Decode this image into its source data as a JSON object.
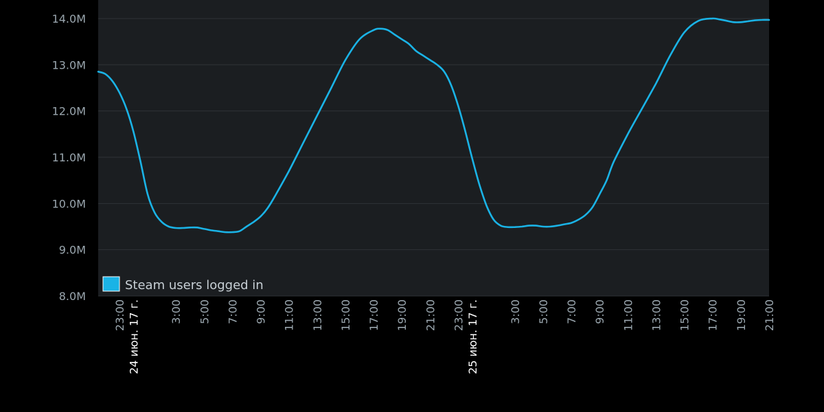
{
  "chart_data": {
    "type": "line",
    "title": "",
    "xlabel": "",
    "ylabel": "",
    "ylim": [
      8.0,
      14.4
    ],
    "y_ticks": [
      {
        "value": 8.0,
        "label": "8.0M"
      },
      {
        "value": 9.0,
        "label": "9.0M"
      },
      {
        "value": 10.0,
        "label": "10.0M"
      },
      {
        "value": 11.0,
        "label": "11.0M"
      },
      {
        "value": 12.0,
        "label": "12.0M"
      },
      {
        "value": 13.0,
        "label": "13.0M"
      },
      {
        "value": 14.0,
        "label": "14.0M"
      }
    ],
    "xlim": [
      21.5,
      69.0
    ],
    "x_ticks": [
      {
        "value": 23,
        "label": "23:00"
      },
      {
        "value": 24,
        "label": "24 июн. 17 г.",
        "date": true
      },
      {
        "value": 27,
        "label": "3:00"
      },
      {
        "value": 29,
        "label": "5:00"
      },
      {
        "value": 31,
        "label": "7:00"
      },
      {
        "value": 33,
        "label": "9:00"
      },
      {
        "value": 35,
        "label": "11:00"
      },
      {
        "value": 37,
        "label": "13:00"
      },
      {
        "value": 39,
        "label": "15:00"
      },
      {
        "value": 41,
        "label": "17:00"
      },
      {
        "value": 43,
        "label": "19:00"
      },
      {
        "value": 45,
        "label": "21:00"
      },
      {
        "value": 47,
        "label": "23:00"
      },
      {
        "value": 48,
        "label": "25 июн. 17 г.",
        "date": true
      },
      {
        "value": 51,
        "label": "3:00"
      },
      {
        "value": 53,
        "label": "5:00"
      },
      {
        "value": 55,
        "label": "7:00"
      },
      {
        "value": 57,
        "label": "9:00"
      },
      {
        "value": 59,
        "label": "11:00"
      },
      {
        "value": 61,
        "label": "13:00"
      },
      {
        "value": 63,
        "label": "15:00"
      },
      {
        "value": 65,
        "label": "17:00"
      },
      {
        "value": 67,
        "label": "19:00"
      },
      {
        "value": 69,
        "label": "21:00"
      }
    ],
    "series": [
      {
        "name": "Steam users logged in",
        "color": "#1ab3e6",
        "x": [
          21.5,
          22.0,
          22.5,
          23.0,
          23.5,
          24.0,
          24.5,
          25.0,
          25.5,
          26.0,
          26.5,
          27.0,
          27.5,
          28.0,
          28.5,
          29.0,
          29.5,
          30.0,
          30.5,
          31.0,
          31.5,
          32.0,
          32.5,
          33.0,
          33.5,
          34.0,
          35.0,
          36.0,
          37.0,
          38.0,
          39.0,
          40.0,
          41.0,
          41.5,
          42.0,
          42.5,
          43.0,
          43.5,
          44.0,
          44.5,
          45.0,
          45.5,
          46.0,
          46.5,
          47.0,
          47.5,
          48.0,
          48.5,
          49.0,
          49.5,
          50.0,
          50.5,
          51.0,
          51.5,
          52.0,
          52.5,
          53.0,
          53.5,
          54.0,
          54.5,
          55.0,
          55.5,
          56.0,
          56.5,
          57.0,
          57.5,
          58.0,
          59.0,
          60.0,
          61.0,
          62.0,
          63.0,
          64.0,
          65.0,
          65.5,
          66.0,
          66.5,
          67.0,
          67.5,
          68.0,
          68.5,
          69.0
        ],
        "y": [
          12.85,
          12.8,
          12.65,
          12.4,
          12.05,
          11.55,
          10.9,
          10.2,
          9.8,
          9.6,
          9.5,
          9.47,
          9.47,
          9.48,
          9.48,
          9.45,
          9.42,
          9.4,
          9.38,
          9.38,
          9.4,
          9.5,
          9.6,
          9.72,
          9.9,
          10.15,
          10.7,
          11.3,
          11.9,
          12.5,
          13.1,
          13.55,
          13.75,
          13.78,
          13.75,
          13.65,
          13.55,
          13.45,
          13.3,
          13.2,
          13.1,
          13.0,
          12.85,
          12.55,
          12.1,
          11.55,
          10.95,
          10.4,
          9.95,
          9.65,
          9.52,
          9.49,
          9.49,
          9.5,
          9.52,
          9.52,
          9.5,
          9.5,
          9.52,
          9.55,
          9.58,
          9.65,
          9.75,
          9.92,
          10.2,
          10.5,
          10.9,
          11.5,
          12.05,
          12.6,
          13.2,
          13.7,
          13.95,
          14.0,
          13.98,
          13.95,
          13.92,
          13.92,
          13.94,
          13.96,
          13.97,
          13.97
        ]
      }
    ],
    "grid": true,
    "legend": "bottom-left",
    "colors": {
      "page_background": "#000000",
      "plot_background": "#1b1e21",
      "grid": "#2f3337",
      "line": "#1ab3e6",
      "legend_swatch": "#1ab3e6"
    }
  }
}
